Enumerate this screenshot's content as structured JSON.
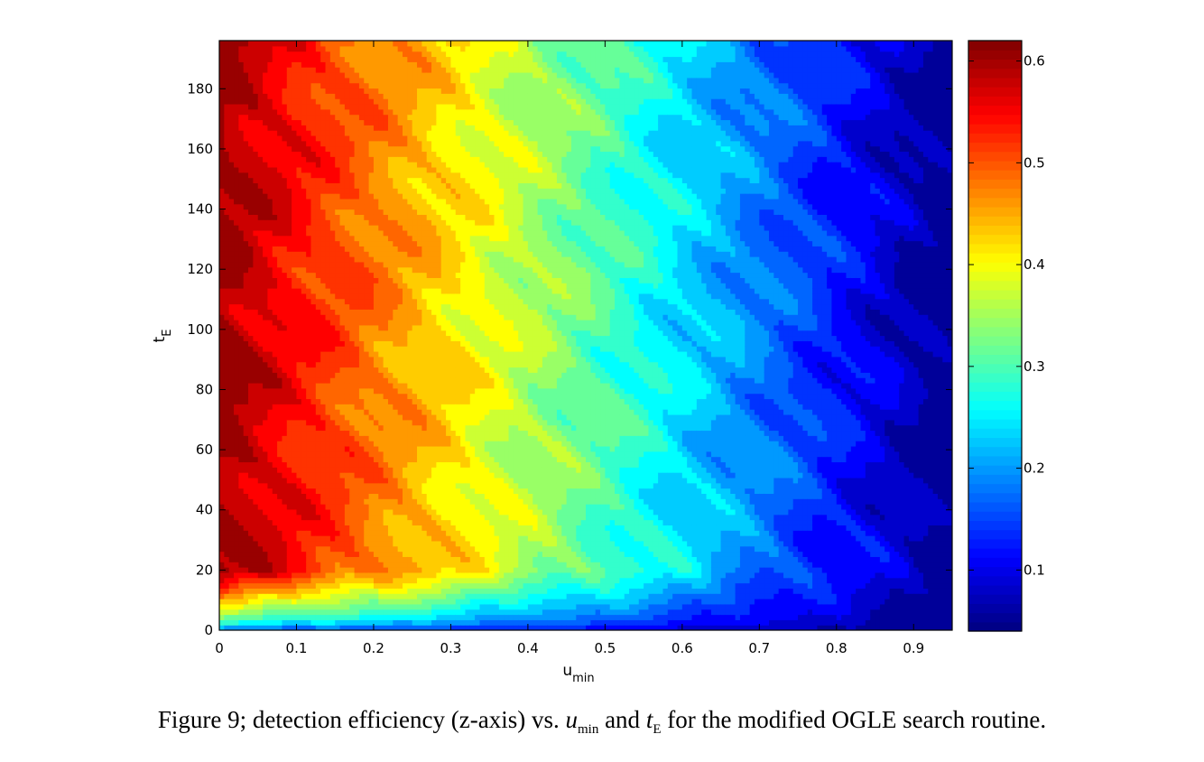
{
  "chart_data": {
    "type": "heatmap",
    "title": "",
    "xlabel": "u",
    "xlabel_sub": "min",
    "ylabel": "t",
    "ylabel_sub": "E",
    "xlim": [
      0,
      0.95
    ],
    "ylim": [
      0,
      196
    ],
    "xticks": [
      0,
      0.1,
      0.2,
      0.3,
      0.4,
      0.5,
      0.6,
      0.7,
      0.8,
      0.9
    ],
    "xtick_labels": [
      "0",
      "0.1",
      "0.2",
      "0.3",
      "0.4",
      "0.5",
      "0.6",
      "0.7",
      "0.8",
      "0.9"
    ],
    "yticks": [
      0,
      20,
      40,
      60,
      80,
      100,
      120,
      140,
      160,
      180
    ],
    "ytick_labels": [
      "0",
      "20",
      "40",
      "60",
      "80",
      "100",
      "120",
      "140",
      "160",
      "180"
    ],
    "colorbar": {
      "colormap": "jet",
      "range": [
        0.04,
        0.62
      ],
      "ticks": [
        0.1,
        0.2,
        0.3,
        0.4,
        0.5,
        0.6
      ],
      "tick_labels": [
        "0.1",
        "0.2",
        "0.3",
        "0.4",
        "0.5",
        "0.6"
      ]
    },
    "z_description_points": [
      {
        "u": 0.02,
        "t": 60,
        "z": 0.6
      },
      {
        "u": 0.1,
        "t": 100,
        "z": 0.55
      },
      {
        "u": 0.2,
        "t": 100,
        "z": 0.5
      },
      {
        "u": 0.3,
        "t": 100,
        "z": 0.45
      },
      {
        "u": 0.4,
        "t": 100,
        "z": 0.38
      },
      {
        "u": 0.5,
        "t": 100,
        "z": 0.32
      },
      {
        "u": 0.6,
        "t": 100,
        "z": 0.26
      },
      {
        "u": 0.7,
        "t": 100,
        "z": 0.2
      },
      {
        "u": 0.8,
        "t": 100,
        "z": 0.14
      },
      {
        "u": 0.9,
        "t": 100,
        "z": 0.09
      },
      {
        "u": 0.5,
        "t": 2,
        "z": 0.06
      }
    ]
  },
  "caption": {
    "prefix": "Figure 9; detection efficiency (z-axis) vs. ",
    "u": "u",
    "u_sub": "min",
    "and": "and",
    "t": "t",
    "t_sub": "E",
    "suffix": "for the modified OGLE search routine."
  }
}
